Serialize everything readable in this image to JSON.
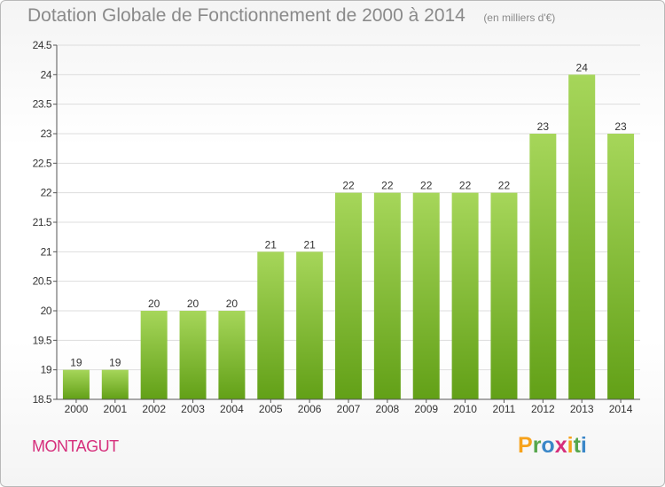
{
  "header": {
    "title": "Dotation Globale de Fonctionnement de 2000 à 2014",
    "subtitle": "(en milliers d'€)"
  },
  "footer": {
    "place": "MONTAGUT",
    "brand_letters": [
      "P",
      "r",
      "o",
      "x",
      "i",
      "t",
      "i"
    ],
    "brand_colors": [
      "#f7a21b",
      "#56a64b",
      "#3a87c8",
      "#d62f7c",
      "#f7a21b",
      "#56a64b",
      "#3a87c8"
    ]
  },
  "colors": {
    "bar_light": "#a6d65a",
    "bar_dark": "#62a017",
    "axis": "#555555",
    "grid": "#dddddd",
    "text": "#333333"
  },
  "chart_data": {
    "type": "bar",
    "title": "Dotation Globale de Fonctionnement de 2000 à 2014",
    "subtitle": "(en milliers d'€)",
    "categories": [
      "2000",
      "2001",
      "2002",
      "2003",
      "2004",
      "2005",
      "2006",
      "2007",
      "2008",
      "2009",
      "2010",
      "2011",
      "2012",
      "2013",
      "2014"
    ],
    "values": [
      19,
      19,
      20,
      20,
      20,
      21,
      21,
      22,
      22,
      22,
      22,
      22,
      23,
      24,
      23
    ],
    "data_labels": [
      "19",
      "19",
      "20",
      "20",
      "20",
      "21",
      "21",
      "22",
      "22",
      "22",
      "22",
      "22",
      "23",
      "24",
      "23"
    ],
    "ylim": [
      18.5,
      24.5
    ],
    "yticks": [
      18.5,
      19,
      19.5,
      20,
      20.5,
      21,
      21.5,
      22,
      22.5,
      23,
      23.5,
      24,
      24.5
    ],
    "ytick_labels": [
      "18.5",
      "19",
      "19.5",
      "20",
      "20.5",
      "21",
      "21.5",
      "22",
      "22.5",
      "23",
      "23.5",
      "24",
      "24.5"
    ],
    "xlabel": "",
    "ylabel": "",
    "grid": true,
    "legend": "none"
  }
}
